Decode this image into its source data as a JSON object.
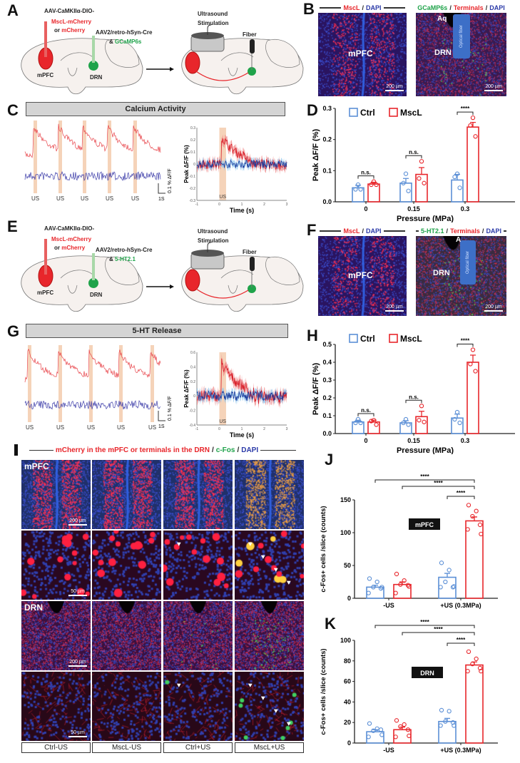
{
  "panel_labels": {
    "A": "A",
    "B": "B",
    "C": "C",
    "D": "D",
    "E": "E",
    "F": "F",
    "G": "G",
    "H": "H",
    "I": "I",
    "J": "J",
    "K": "K"
  },
  "panel_a": {
    "virus1_line1": "AAV-CaMKIIα-DIO-",
    "virus1_mscl": "MscL-mCherry",
    "virus1_or": "or ",
    "virus1_mcherry": "mCherry",
    "virus2_line1": "AAV2/retro-hSyn-Cre",
    "virus2_amp": "& ",
    "virus2_indicator": "GCaMP6s",
    "region1": "mPFC",
    "region2": "DRN",
    "stim_line1": "Ultrasound",
    "stim_line2": "Stimulation",
    "fiber": "Fiber"
  },
  "panel_b": {
    "left_title": {
      "a": "MscL",
      "sep": "/",
      "b": "DAPI"
    },
    "right_title": {
      "a": "GCaMP6s",
      "sep1": "/",
      "b": "Terminals",
      "sep2": "/",
      "c": "DAPI"
    },
    "left_region": "mPFC",
    "right_region": "DRN",
    "aq": "Aq",
    "optical_fiber": "Optical fiber",
    "scale": "200 µm"
  },
  "panel_c": {
    "banner": "Calcium Activity",
    "us": "US",
    "scale_y": "0.1 % ΔF/F",
    "scale_x": "1S"
  },
  "panel_e": {
    "virus1_line1": "AAV-CaMKIIα-DIO-",
    "virus1_mscl": "MscL-mCherry",
    "virus1_or": "or ",
    "virus1_mcherry": "mCherry",
    "virus2_line1": "AAV2/retro-hSyn-Cre",
    "virus2_amp": "& ",
    "virus2_indicator": "5-HT2.1",
    "region1": "mPFC",
    "region2": "DRN",
    "stim_line1": "Ultrasound",
    "stim_line2": "Stimulation",
    "fiber": "Fiber"
  },
  "panel_f": {
    "left_title": {
      "a": "MscL",
      "sep": "/",
      "b": "DAPI"
    },
    "right_title": {
      "a": "5-HT2.1",
      "sep1": "/ ",
      "b": "Terminals",
      "sep2": " /",
      "c": "DAPI"
    },
    "left_region": "mPFC",
    "right_region": "DRN",
    "aq": "A",
    "optical_fiber": "Optical fiber",
    "scale": "200 µm"
  },
  "panel_g": {
    "banner": "5-HT Release",
    "us": "US",
    "scale_y": "0.1 % ΔF/F",
    "scale_x": "1S"
  },
  "panel_i": {
    "title": {
      "a": "mCherry in the mPFC or terminals in the DRN",
      "sep1": "/",
      "b": "c-Fos",
      "sep2": "/",
      "c": "DAPI"
    },
    "row_labels": [
      "mPFC",
      "DRN"
    ],
    "scales": [
      "200 µm",
      "50 µm",
      "200 µm",
      "50 µm"
    ],
    "conditions": [
      "Ctrl-US",
      "MscL-US",
      "Ctrl+US",
      "MscL+US"
    ]
  },
  "colors": {
    "ctrl": "#5b8fd6",
    "mscl": "#e8262b",
    "ctrl_trace": "#3b3ba8",
    "mscl_trace": "#e8444a",
    "us_window": "#f3c8a8"
  },
  "chart_data": [
    {
      "id": "C-inset",
      "type": "line",
      "ylabel": "Peak ΔF/F (%)",
      "xlabel": "Time (s)",
      "xlim": [
        -1,
        3
      ],
      "ylim": [
        -0.3,
        0.3
      ],
      "xticks": [
        "-1",
        "0",
        "1",
        "2",
        "3"
      ],
      "yticks": [
        "0.3",
        "0.2",
        "0.1",
        "0",
        "-0.1",
        "-0.2",
        "-0.3"
      ],
      "annotation": "US",
      "us_window": [
        0,
        0.3
      ]
    },
    {
      "id": "D",
      "type": "bar",
      "xlabel": "Pressure (MPa)",
      "ylabel": "Peak ΔF/F (%)",
      "ylim": [
        0,
        0.3
      ],
      "yticks": [
        "0.0",
        "0.1",
        "0.2",
        "0.3"
      ],
      "categories": [
        "0",
        "0.15",
        "0.3"
      ],
      "legend": "top-left",
      "series": [
        {
          "name": "Ctrl",
          "values": [
            0.045,
            0.06,
            0.07
          ],
          "sem": [
            0.008,
            0.015,
            0.018
          ],
          "points": [
            [
              0.055,
              0.04,
              0.04
            ],
            [
              0.09,
              0.06,
              0.035
            ],
            [
              0.09,
              0.08,
              0.045
            ]
          ]
        },
        {
          "name": "MscL",
          "values": [
            0.057,
            0.088,
            0.24
          ],
          "sem": [
            0.006,
            0.022,
            0.015
          ],
          "points": [
            [
              0.065,
              0.055,
              0.055
            ],
            [
              0.13,
              0.075,
              0.06
            ],
            [
              0.27,
              0.245,
              0.21
            ]
          ]
        }
      ],
      "comparisons": [
        {
          "category": 0,
          "label": "n.s."
        },
        {
          "category": 1,
          "label": "n.s."
        },
        {
          "category": 2,
          "label": "****"
        }
      ]
    },
    {
      "id": "G-inset",
      "type": "line",
      "ylabel": "Peak ΔF/F (%)",
      "xlabel": "Time (s)",
      "xlim": [
        -1,
        3
      ],
      "ylim": [
        -0.4,
        0.6
      ],
      "xticks": [
        "-1",
        "0",
        "1",
        "2",
        "3"
      ],
      "yticks": [
        "0.6",
        "0.4",
        "0.2",
        "0",
        "-0.2",
        "-0.4"
      ],
      "annotation": "US",
      "us_window": [
        0,
        0.3
      ]
    },
    {
      "id": "H",
      "type": "bar",
      "xlabel": "Pressure (MPa)",
      "ylabel": "Peak ΔF/F (%)",
      "ylim": [
        0,
        0.5
      ],
      "yticks": [
        "0.0",
        "0.1",
        "0.2",
        "0.3",
        "0.4",
        "0.5"
      ],
      "categories": [
        "0",
        "0.15",
        "0.3"
      ],
      "legend": "top-left",
      "series": [
        {
          "name": "Ctrl",
          "values": [
            0.065,
            0.06,
            0.087
          ],
          "sem": [
            0.01,
            0.012,
            0.022
          ],
          "points": [
            [
              0.08,
              0.06,
              0.06
            ],
            [
              0.08,
              0.06,
              0.05
            ],
            [
              0.12,
              0.08,
              0.06
            ]
          ]
        },
        {
          "name": "MscL",
          "values": [
            0.065,
            0.095,
            0.4
          ],
          "sem": [
            0.01,
            0.03,
            0.04
          ],
          "points": [
            [
              0.075,
              0.07,
              0.05
            ],
            [
              0.155,
              0.075,
              0.065
            ],
            [
              0.47,
              0.39,
              0.35
            ]
          ]
        }
      ],
      "comparisons": [
        {
          "category": 0,
          "label": "n.s."
        },
        {
          "category": 1,
          "label": "n.s."
        },
        {
          "category": 2,
          "label": "****"
        }
      ]
    },
    {
      "id": "J",
      "type": "bar",
      "ylabel": "c-Fos+ cells /slice (counts)",
      "ylim": [
        0,
        150
      ],
      "yticks": [
        "0",
        "50",
        "100",
        "150"
      ],
      "categories": [
        "-US",
        "+US (0.3MPa)"
      ],
      "annotation": "mPFC",
      "series": [
        {
          "name": "Ctrl",
          "values": [
            17,
            32
          ],
          "sem": [
            3,
            6
          ],
          "points": [
            [
              30,
              25,
              17,
              15,
              8,
              17
            ],
            [
              54,
              43,
              25,
              17,
              17,
              18
            ]
          ]
        },
        {
          "name": "MscL",
          "values": [
            21,
            118
          ],
          "sem": [
            4,
            6
          ],
          "points": [
            [
              37,
              27,
              21,
              20,
              8,
              18
            ],
            [
              142,
              133,
              125,
              112,
              105,
              98
            ]
          ]
        }
      ],
      "comparisons": [
        {
          "from": [
            1,
            0
          ],
          "to": [
            1,
            1
          ],
          "label": "****"
        },
        {
          "from": [
            0,
            1
          ],
          "to": [
            1,
            1
          ],
          "label": "****"
        },
        {
          "from": [
            0,
            0
          ],
          "to": [
            1,
            1
          ],
          "label": "****"
        }
      ]
    },
    {
      "id": "K",
      "type": "bar",
      "ylabel": "c-Fos+ cells /slice (counts)",
      "ylim": [
        0,
        100
      ],
      "yticks": [
        "0",
        "20",
        "40",
        "60",
        "80",
        "100"
      ],
      "categories": [
        "-US",
        "+US (0.3MPa)"
      ],
      "annotation": "DRN",
      "series": [
        {
          "name": "Ctrl",
          "values": [
            11,
            21
          ],
          "sem": [
            2,
            3
          ],
          "points": [
            [
              19,
              14,
              12,
              13,
              6,
              8
            ],
            [
              32,
              31,
              21,
              20,
              17,
              17
            ]
          ]
        },
        {
          "name": "MscL",
          "values": [
            13,
            76
          ],
          "sem": [
            2.5,
            3
          ],
          "points": [
            [
              22,
              18,
              16,
              13,
              6,
              7
            ],
            [
              89,
              82,
              77,
              73,
              70,
              70
            ]
          ]
        }
      ],
      "comparisons": [
        {
          "from": [
            1,
            0
          ],
          "to": [
            1,
            1
          ],
          "label": "****"
        },
        {
          "from": [
            0,
            1
          ],
          "to": [
            1,
            1
          ],
          "label": "****"
        },
        {
          "from": [
            0,
            0
          ],
          "to": [
            1,
            1
          ],
          "label": "****"
        }
      ]
    }
  ]
}
